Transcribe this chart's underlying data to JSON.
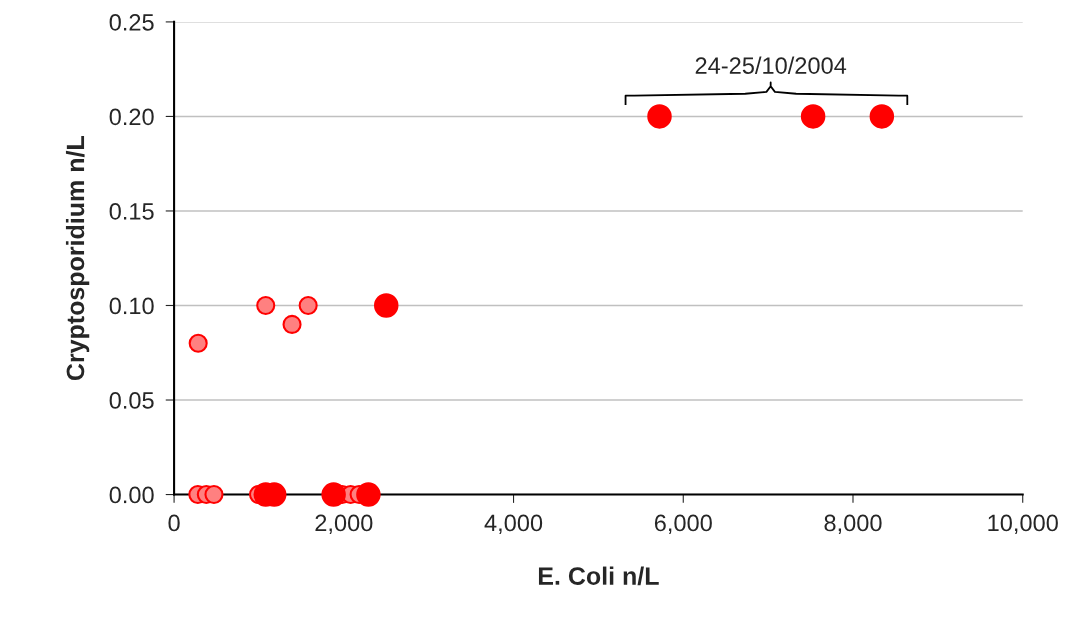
{
  "chart_data": {
    "type": "scatter",
    "xlabel": "E. Coli n/L",
    "ylabel": "Cryptosporidium n/L",
    "series": [
      {
        "color": "#ff8080",
        "x": [
          284,
          1080,
          1390,
          1580,
          280,
          380,
          470,
          995,
          1980,
          2080,
          2180
        ],
        "values": [
          0.08,
          0.1,
          0.09,
          0.1,
          0,
          0,
          0,
          0,
          0,
          0,
          0
        ]
      },
      {
        "color": "#ff0000",
        "x": [
          2500,
          1080,
          1180,
          1880,
          2290,
          5720,
          7530,
          8340
        ],
        "values": [
          0.1,
          0,
          0,
          0,
          0,
          0.2,
          0.2,
          0.2
        ]
      }
    ],
    "annotations": [
      "24-25/10/2004"
    ],
    "xlim": [
      0,
      10000
    ],
    "xticks": [
      {
        "value": 0,
        "label": "0"
      },
      {
        "value": 2000,
        "label": "2,000"
      },
      {
        "value": 4000,
        "label": "4,000"
      },
      {
        "value": 6000,
        "label": "6,000"
      },
      {
        "value": 8000,
        "label": "8,000"
      },
      {
        "value": 10000,
        "label": "10,000"
      }
    ],
    "ylim": [
      0,
      0.25
    ],
    "yticks": [
      {
        "value": 0,
        "label": "0.00"
      },
      {
        "value": 0.05,
        "label": "0.05"
      },
      {
        "value": 0.1,
        "label": "0.10"
      },
      {
        "value": 0.15,
        "label": "0.15"
      },
      {
        "value": 0.2,
        "label": "0.20"
      },
      {
        "value": 0.25,
        "label": "0.25"
      }
    ],
    "grid": "y",
    "marker": "circle"
  }
}
